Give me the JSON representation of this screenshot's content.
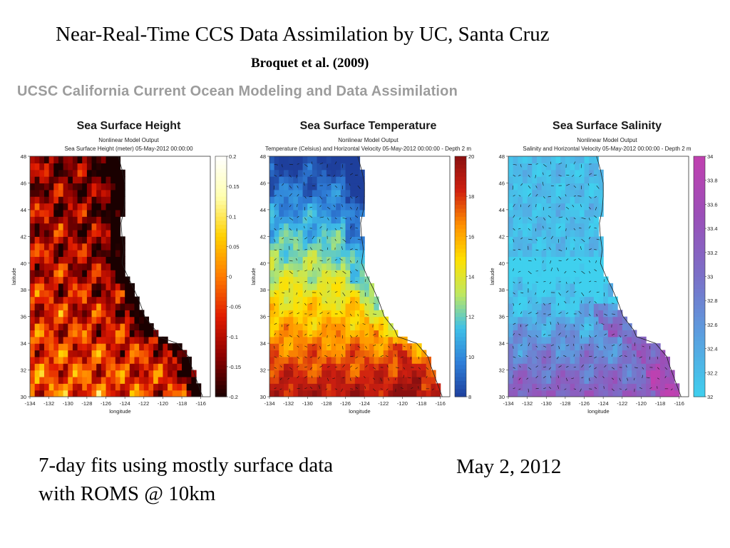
{
  "slide": {
    "title": "Near-Real-Time CCS Data Assimilation by UC, Santa Cruz",
    "subtitle": "Broquet et al. (2009)",
    "banner": "UCSC California Current Ocean Modeling and Data Assimilation",
    "note_line1": "7-day fits using mostly surface data",
    "note_line2": "with ROMS @ 10km",
    "date": "May 2, 2012"
  },
  "chart_data": [
    {
      "type": "heatmap",
      "title": "Sea Surface Height",
      "subtitle1": "Nonlinear Model Output",
      "subtitle2": "Sea Surface Height (meter) 05-May-2012 00:00:00",
      "xlabel": "longitude",
      "ylabel": "latitude",
      "x_ticks": [
        -134,
        -132,
        -130,
        -128,
        -126,
        -124,
        -122,
        -120,
        -118,
        -116
      ],
      "y_ticks": [
        30,
        32,
        34,
        36,
        38,
        40,
        42,
        44,
        46,
        48
      ],
      "xlim": [
        -134,
        -115
      ],
      "ylim": [
        30,
        48
      ],
      "colorbar": {
        "min": -0.2,
        "max": 0.2,
        "ticks": [
          -0.2,
          -0.15,
          -0.1,
          -0.05,
          0,
          0.05,
          0.1,
          0.15,
          0.2
        ],
        "colormap": "hot",
        "colors": [
          "#1a0000",
          "#8b0000",
          "#e01b00",
          "#ff7a00",
          "#ffd000",
          "#ffffb0",
          "#ffffff"
        ]
      },
      "vectors": false
    },
    {
      "type": "heatmap",
      "title": "Sea Surface Temperature",
      "subtitle1": "Nonlinear Model Output",
      "subtitle2": "Temperature (Celsius) and Horizontal Velocity 05-May-2012 00:00:00 - Depth 2 m",
      "xlabel": "longitude",
      "ylabel": "latitude",
      "x_ticks": [
        -134,
        -132,
        -130,
        -128,
        -126,
        -124,
        -122,
        -120,
        -118,
        -116
      ],
      "y_ticks": [
        30,
        32,
        34,
        36,
        38,
        40,
        42,
        44,
        46,
        48
      ],
      "xlim": [
        -134,
        -115
      ],
      "ylim": [
        30,
        48
      ],
      "colorbar": {
        "min": 8,
        "max": 20,
        "ticks": [
          8,
          10,
          12,
          14,
          16,
          18,
          20
        ],
        "colormap": "jet",
        "colors": [
          "#1e3f9c",
          "#2f7fd8",
          "#3fc0e8",
          "#bfe860",
          "#ffe000",
          "#ff9000",
          "#d02010",
          "#8a1010"
        ]
      },
      "vectors": true
    },
    {
      "type": "heatmap",
      "title": "Sea Surface Salinity",
      "subtitle1": "Nonlinear Model Output",
      "subtitle2": "Salinity and Horizontal Velocity 05-May-2012 00:00:00 - Depth 2 m",
      "xlabel": "longitude",
      "ylabel": "latitude",
      "x_ticks": [
        -134,
        -132,
        -130,
        -128,
        -126,
        -124,
        -122,
        -120,
        -118,
        -116
      ],
      "y_ticks": [
        30,
        32,
        34,
        36,
        38,
        40,
        42,
        44,
        46,
        48
      ],
      "xlim": [
        -134,
        -115
      ],
      "ylim": [
        30,
        48
      ],
      "colorbar": {
        "min": 32,
        "max": 34,
        "ticks": [
          32,
          32.2,
          32.4,
          32.6,
          32.8,
          33,
          33.2,
          33.4,
          33.6,
          33.8,
          34
        ],
        "colormap": "cyan-magenta",
        "colors": [
          "#3fd0ee",
          "#5aa0e0",
          "#7a70c8",
          "#9a50b8",
          "#c040b0"
        ]
      },
      "vectors": true
    }
  ]
}
